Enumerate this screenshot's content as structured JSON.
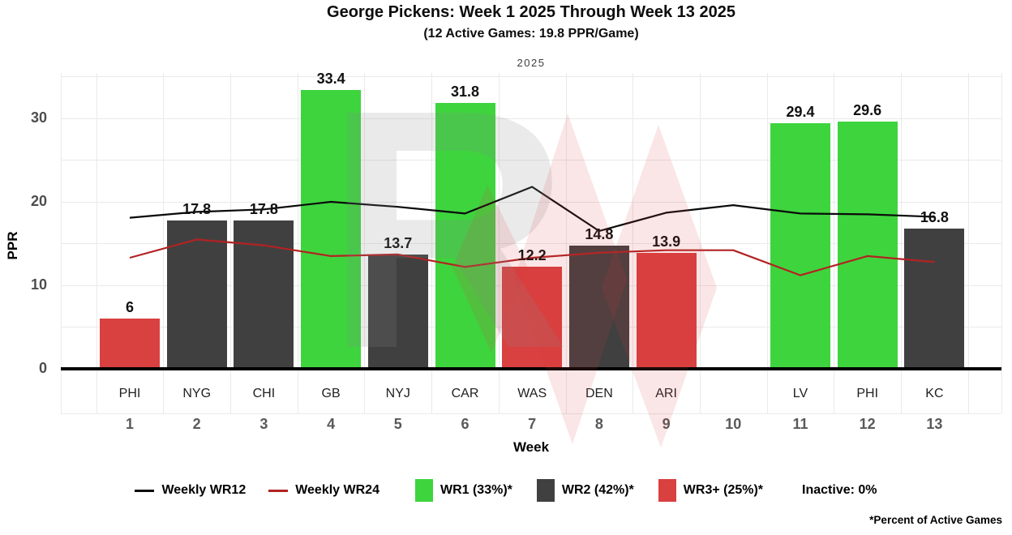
{
  "chart_data": {
    "type": "bar",
    "title": "George Pickens: Week 1 2025 Through Week 13 2025",
    "subtitle": "(12 Active Games: 19.8 PPR/Game)",
    "facet_label": "2025",
    "xlabel": "Week",
    "ylabel": "PPR",
    "ylim": [
      0,
      35.4
    ],
    "yticks": [
      "0",
      "10",
      "20",
      "30"
    ],
    "ytick_values": [
      0,
      10,
      20,
      30
    ],
    "gridline_step": 5,
    "grid_on": true,
    "weeks": [
      {
        "week": "1",
        "team": "PHI",
        "value": 6,
        "label": "6",
        "tier": "wr3"
      },
      {
        "week": "2",
        "team": "NYG",
        "value": 17.8,
        "label": "17.8",
        "tier": "wr2"
      },
      {
        "week": "3",
        "team": "CHI",
        "value": 17.8,
        "label": "17.8",
        "tier": "wr2"
      },
      {
        "week": "4",
        "team": "GB",
        "value": 33.4,
        "label": "33.4",
        "tier": "wr1"
      },
      {
        "week": "5",
        "team": "NYJ",
        "value": 13.7,
        "label": "13.7",
        "tier": "wr2"
      },
      {
        "week": "6",
        "team": "CAR",
        "value": 31.8,
        "label": "31.8",
        "tier": "wr1"
      },
      {
        "week": "7",
        "team": "WAS",
        "value": 12.2,
        "label": "12.2",
        "tier": "wr3"
      },
      {
        "week": "8",
        "team": "DEN",
        "value": 14.8,
        "label": "14.8",
        "tier": "wr2"
      },
      {
        "week": "9",
        "team": "ARI",
        "value": 13.9,
        "label": "13.9",
        "tier": "wr3"
      },
      {
        "week": "10",
        "team": "",
        "value": null,
        "label": "",
        "tier": "none"
      },
      {
        "week": "11",
        "team": "LV",
        "value": 29.4,
        "label": "29.4",
        "tier": "wr1"
      },
      {
        "week": "12",
        "team": "PHI",
        "value": 29.6,
        "label": "29.6",
        "tier": "wr1"
      },
      {
        "week": "13",
        "team": "KC",
        "value": 16.8,
        "label": "16.8",
        "tier": "wr2"
      }
    ],
    "series": [
      {
        "name": "Weekly WR12",
        "color": "#0a0a0a",
        "values": [
          18.1,
          18.8,
          19.1,
          20.0,
          19.4,
          18.6,
          21.8,
          16.5,
          18.7,
          19.6,
          18.6,
          18.5,
          18.2
        ]
      },
      {
        "name": "Weekly WR24",
        "color": "#b22222",
        "values": [
          13.3,
          15.5,
          14.8,
          13.5,
          13.7,
          12.2,
          13.3,
          13.9,
          14.2,
          14.2,
          11.2,
          13.5,
          12.8
        ]
      }
    ],
    "tier_colors": {
      "wr1": "#3ed43e",
      "wr2": "#404040",
      "wr3": "#d94040"
    },
    "colors": {
      "grid": "#eaeaea",
      "axis": "#000000",
      "value_label": "#111111",
      "ytick_text": "#4d4d4d",
      "week_text": "#595959",
      "team_text": "#1f1f1f"
    }
  },
  "legend": {
    "items": [
      {
        "type": "line",
        "color": "#0a0a0a",
        "label": "Weekly WR12"
      },
      {
        "type": "line",
        "color": "#b22222",
        "label": "Weekly WR24"
      },
      {
        "type": "box",
        "color": "#3ed43e",
        "label": "WR1 (33%)*"
      },
      {
        "type": "box",
        "color": "#404040",
        "label": "WR2 (42%)*"
      },
      {
        "type": "box",
        "color": "#d94040",
        "label": "WR3+ (25%)*"
      },
      {
        "type": "text",
        "color": "",
        "label": "Inactive: 0%"
      }
    ],
    "footnote": "*Percent of Active Games"
  },
  "watermark": {
    "letter": "R",
    "letter_color": "#8a8a92",
    "shape_color": "#d94040"
  }
}
